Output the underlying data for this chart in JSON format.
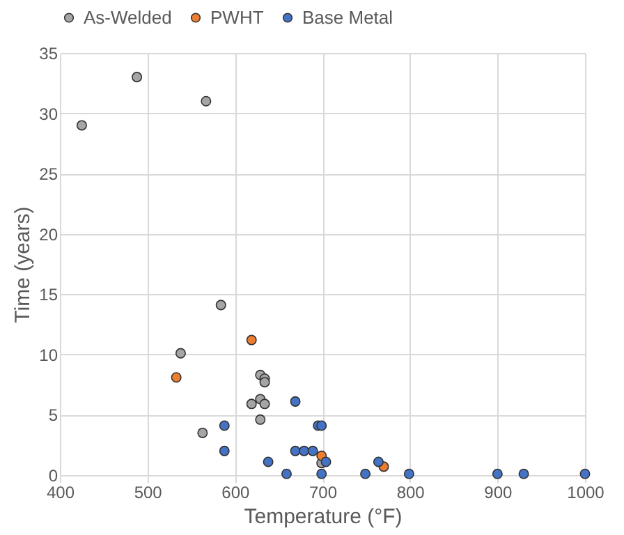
{
  "chart_data": {
    "type": "scatter",
    "xlabel": "Temperature (°F)",
    "ylabel": "Time (years)",
    "xlim": [
      400,
      1000
    ],
    "xticks": [
      400,
      500,
      600,
      700,
      800,
      900,
      1000
    ],
    "ylim": [
      0,
      35
    ],
    "yticks": [
      0,
      5,
      10,
      15,
      20,
      25,
      30,
      35
    ],
    "grid": true,
    "legend": "top",
    "marker": "circle",
    "series": [
      {
        "name": "As-Welded",
        "color": "#a5a5a5",
        "x": [
          425,
          488,
          567,
          584,
          538,
          629,
          634,
          634,
          629,
          619,
          634,
          629,
          563,
          699
        ],
        "values": [
          29,
          33,
          31,
          14.1,
          10.1,
          8.3,
          8.0,
          7.7,
          6.3,
          5.9,
          5.9,
          4.6,
          3.5,
          1.0
        ]
      },
      {
        "name": "PWHT",
        "color": "#ed7d31",
        "x": [
          619,
          533,
          699,
          770
        ],
        "values": [
          11.2,
          8.1,
          1.6,
          0.7
        ]
      },
      {
        "name": "Base Metal",
        "color": "#4472c4",
        "x": [
          588,
          588,
          638,
          659,
          669,
          669,
          679,
          689,
          695,
          699,
          699,
          704,
          749,
          764,
          799,
          900,
          930,
          1000
        ],
        "values": [
          4.1,
          2.0,
          1.1,
          0.1,
          6.1,
          2.0,
          2.0,
          2.0,
          4.1,
          4.1,
          0.1,
          1.1,
          0.1,
          1.1,
          0.1,
          0.1,
          0.1,
          0.1
        ]
      }
    ]
  }
}
